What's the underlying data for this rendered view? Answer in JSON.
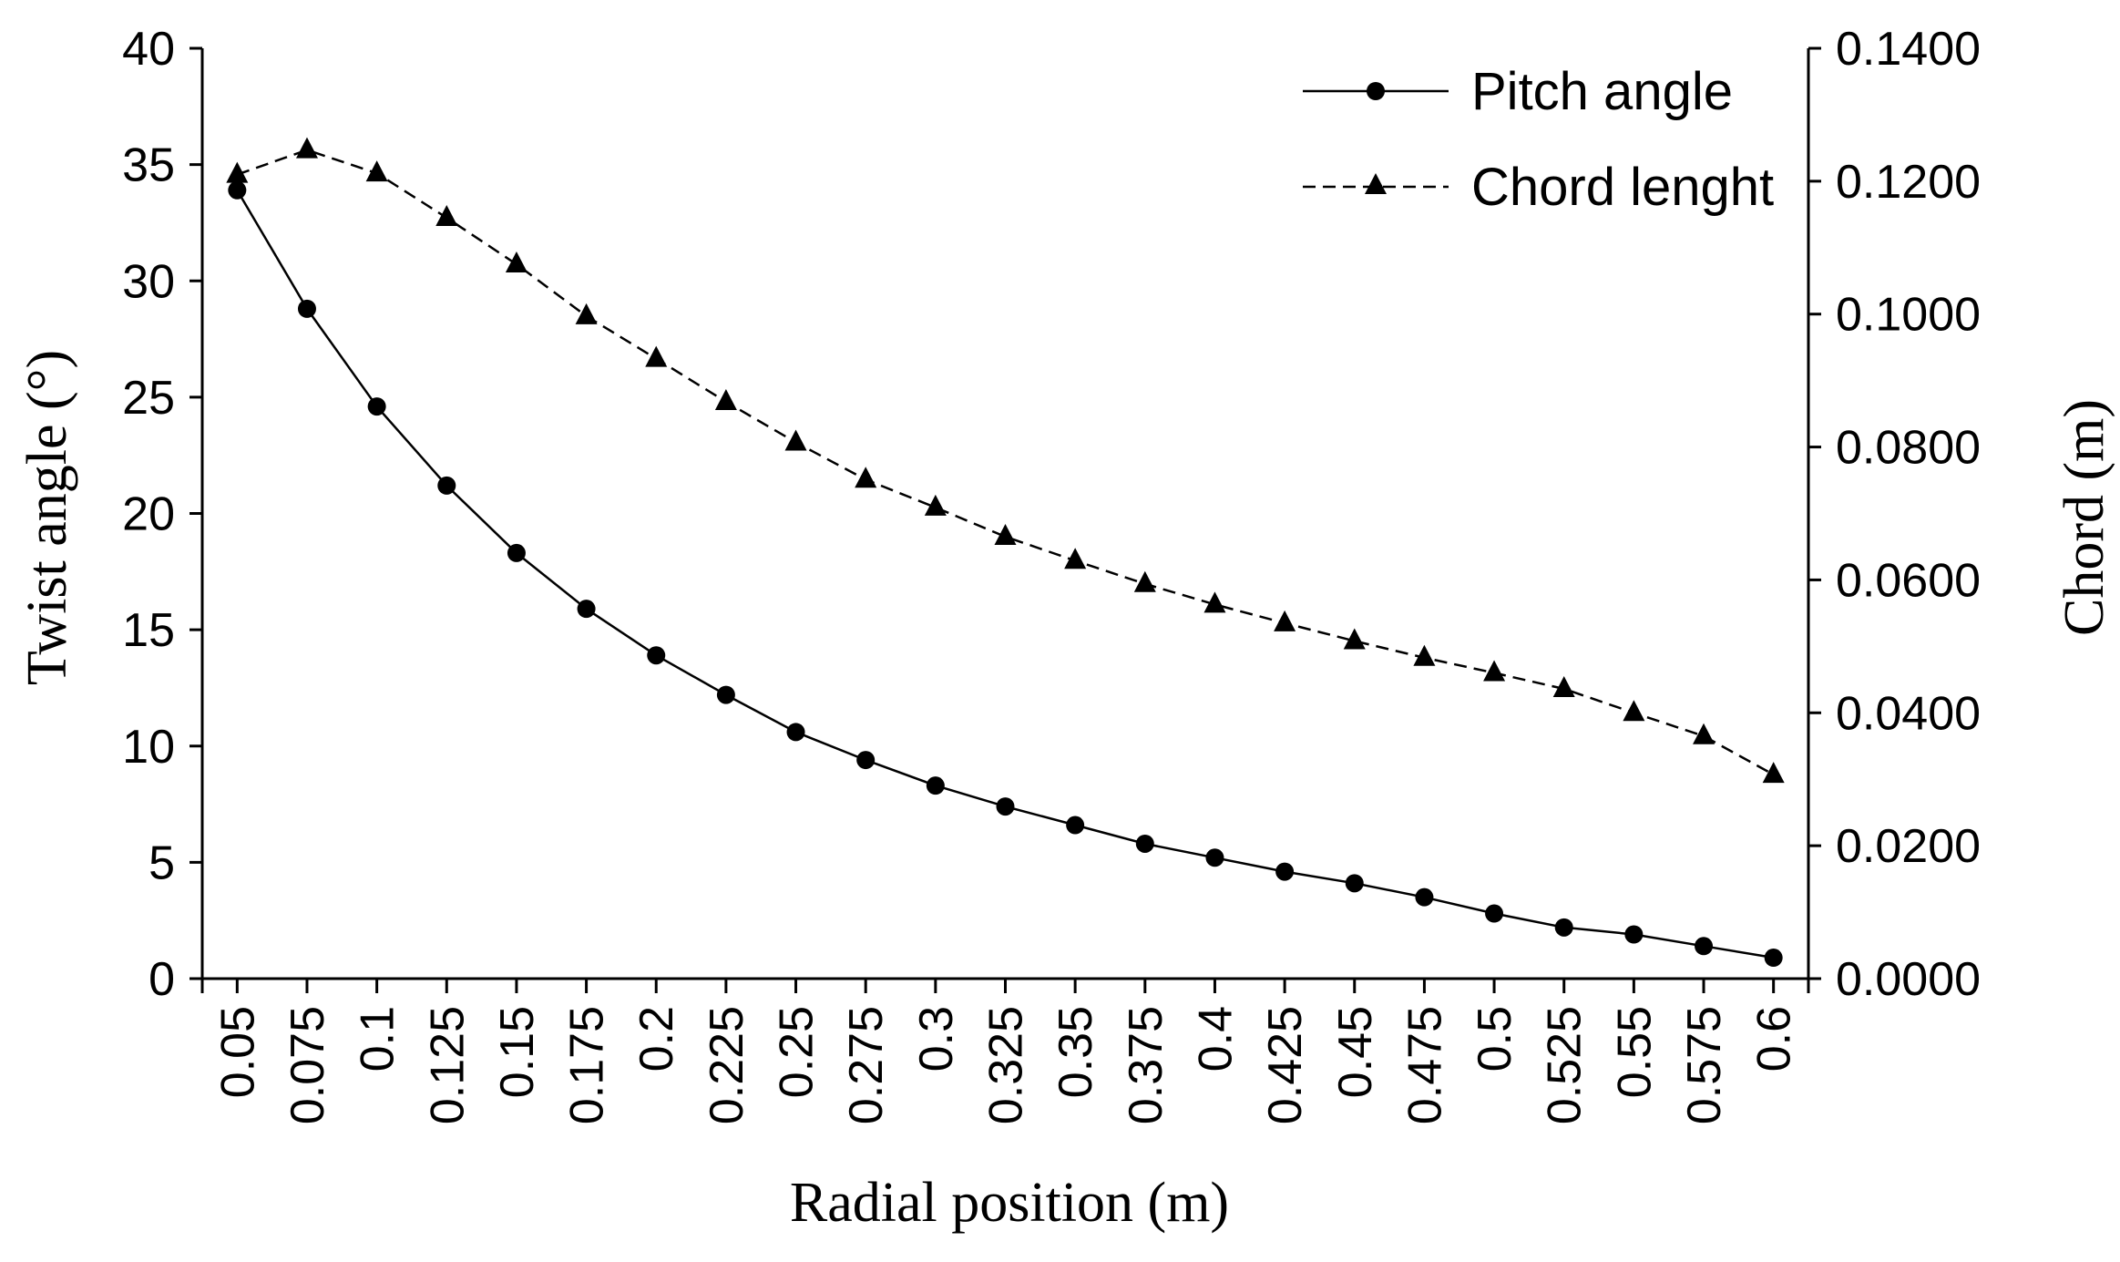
{
  "chart_data": {
    "type": "line",
    "x_categories": [
      "0.05",
      "0.075",
      "0.1",
      "0.125",
      "0.15",
      "0.175",
      "0.2",
      "0.225",
      "0.25",
      "0.275",
      "0.3",
      "0.325",
      "0.35",
      "0.375",
      "0.4",
      "0.425",
      "0.45",
      "0.475",
      "0.5",
      "0.525",
      "0.55",
      "0.575",
      "0.6"
    ],
    "x_values": [
      0.05,
      0.075,
      0.1,
      0.125,
      0.15,
      0.175,
      0.2,
      0.225,
      0.25,
      0.275,
      0.3,
      0.325,
      0.35,
      0.375,
      0.4,
      0.425,
      0.45,
      0.475,
      0.5,
      0.525,
      0.55,
      0.575,
      0.6
    ],
    "xlabel": "Radial position (m)",
    "ylabel_left": "Twist angle (°)",
    "ylabel_right": "Chord (m)",
    "ylim_left": [
      0,
      40
    ],
    "ylim_right": [
      0,
      0.14
    ],
    "yticks_left": [
      "0",
      "5",
      "10",
      "15",
      "20",
      "25",
      "30",
      "35",
      "40"
    ],
    "yticks_right": [
      "0.0000",
      "0.0200",
      "0.0400",
      "0.0600",
      "0.0800",
      "0.1000",
      "0.1200",
      "0.1400"
    ],
    "grid": false,
    "legend_position": "top-right",
    "series": [
      {
        "name": "Pitch angle",
        "axis": "left",
        "line_style": "solid",
        "marker": "circle",
        "color": "#000000",
        "values": [
          33.9,
          28.8,
          24.6,
          21.2,
          18.3,
          15.9,
          13.9,
          12.2,
          10.6,
          9.4,
          8.3,
          7.4,
          6.6,
          5.8,
          5.2,
          4.6,
          4.1,
          3.5,
          2.8,
          2.2,
          1.9,
          1.4,
          0.9
        ]
      },
      {
        "name": "Chord lenght",
        "axis": "right",
        "line_style": "dashed",
        "marker": "triangle",
        "color": "#000000",
        "values": [
          0.121,
          0.1247,
          0.1212,
          0.1145,
          0.1075,
          0.0997,
          0.0933,
          0.0868,
          0.0807,
          0.0751,
          0.0709,
          0.0665,
          0.0629,
          0.0594,
          0.0563,
          0.0535,
          0.0508,
          0.0483,
          0.046,
          0.0436,
          0.04,
          0.0365,
          0.0307
        ]
      }
    ]
  }
}
